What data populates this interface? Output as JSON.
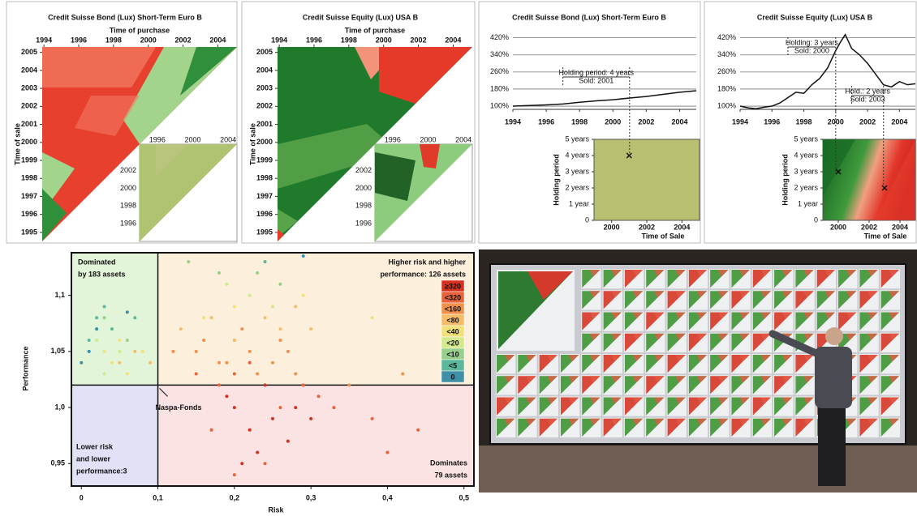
{
  "chart_data": [
    {
      "type": "heatmap",
      "title": "Credit Suisse Bond (Lux) Short-Term Euro B",
      "xlabel": "Time of purchase",
      "ylabel": "Time of sale",
      "xlim": [
        1993.9,
        2005.1
      ],
      "ylim": [
        1994.5,
        2005.3
      ],
      "xticks": [
        1994,
        1996,
        1998,
        2000,
        2002,
        2004
      ],
      "yticks": [
        1995,
        1996,
        1997,
        1998,
        1999,
        2000,
        2001,
        2002,
        2003,
        2004,
        2005
      ],
      "inset_lim": [
        1994,
        2005
      ],
      "inset_xticks": [
        1996,
        2000,
        2004
      ],
      "inset_yticks": [
        1996,
        1998,
        2000,
        2002
      ],
      "colors": [
        "#e8402e",
        "#f27a62",
        "#a3d48c",
        "#2f8f3a"
      ],
      "inset_colors": [
        "#bcc97c",
        "#a9c06e",
        "#c9c98a"
      ]
    },
    {
      "type": "heatmap",
      "title": "Credit Suisse Equity (Lux) USA B",
      "xlabel": "Time of purchase",
      "ylabel": "Time of sale",
      "xlim": [
        1993.9,
        2005.1
      ],
      "ylim": [
        1994.5,
        2005.3
      ],
      "xticks": [
        1994,
        1996,
        1998,
        2000,
        2002,
        2004
      ],
      "yticks": [
        1995,
        1996,
        1997,
        1998,
        1999,
        2000,
        2001,
        2002,
        2003,
        2004,
        2005
      ],
      "inset_lim": [
        1994,
        2005
      ],
      "inset_xticks": [
        1996,
        2000,
        2004
      ],
      "inset_yticks": [
        1996,
        1998,
        2000,
        2002
      ],
      "colors": [
        "#1f7a2c",
        "#5ea84e",
        "#e5392a",
        "#f3937a"
      ],
      "inset_colors": [
        "#8ccc7c",
        "#16561e",
        "#e03a2a"
      ]
    },
    {
      "type": "line",
      "title": "Credit Suisse Bond (Lux) Short-Term Euro B",
      "color": "#111111",
      "x": [
        1994,
        1995,
        1996,
        1997,
        1998,
        1999,
        2000,
        2001,
        2002,
        2003,
        2004,
        2005
      ],
      "values": [
        100,
        103,
        106,
        110,
        118,
        125,
        130,
        138,
        145,
        155,
        165,
        172
      ],
      "xlim": [
        1994,
        2005
      ],
      "ylim": [
        85,
        430
      ],
      "xticks": [
        1994,
        1996,
        1998,
        2000,
        2002,
        2004
      ],
      "yticks": [
        {
          "value": 100,
          "label": "100%"
        },
        {
          "value": 180,
          "label": "180%"
        },
        {
          "value": 260,
          "label": "260%"
        },
        {
          "value": 340,
          "label": "340%"
        },
        {
          "value": 420,
          "label": "420%"
        }
      ],
      "annotations": [
        {
          "text": [
            "Holding period: 4 years",
            "Sold: 2001"
          ],
          "from": 1997,
          "to": 2001
        }
      ],
      "holding": {
        "xlabel": "Time of Sale",
        "ylabel": "Holding period",
        "xlim": [
          1999,
          2005
        ],
        "ylim": [
          0,
          5
        ],
        "xticks": [
          2000,
          2002,
          2004
        ],
        "yticks": [
          0,
          {
            "value": 1,
            "label": "1 year"
          },
          {
            "value": 2,
            "label": "2 years"
          },
          {
            "value": 3,
            "label": "3 years"
          },
          {
            "value": 4,
            "label": "4 years"
          },
          {
            "value": 5,
            "label": "5 years"
          }
        ],
        "colors": [
          "#b8bf70",
          "#b8bf70"
        ],
        "x": [
          2001
        ],
        "values": [
          4
        ]
      }
    },
    {
      "type": "line",
      "title": "Credit Suisse Equity (Lux) USA B",
      "color": "#111111",
      "x": [
        1994,
        1994.5,
        1995,
        1995.5,
        1996,
        1996.5,
        1997,
        1997.5,
        1998,
        1998.5,
        1999,
        1999.5,
        2000,
        2000.3,
        2000.6,
        2001,
        2001.5,
        2002,
        2002.5,
        2003,
        2003.5,
        2004,
        2004.5,
        2005
      ],
      "values": [
        100,
        92,
        88,
        95,
        100,
        115,
        140,
        165,
        160,
        200,
        230,
        280,
        360,
        400,
        435,
        370,
        340,
        300,
        250,
        200,
        190,
        215,
        200,
        205
      ],
      "xlim": [
        1994,
        2005
      ],
      "ylim": [
        85,
        430
      ],
      "xticks": [
        1994,
        1996,
        1998,
        2000,
        2002,
        2004
      ],
      "yticks": [
        {
          "value": 100,
          "label": "100%"
        },
        {
          "value": 180,
          "label": "180%"
        },
        {
          "value": 260,
          "label": "260%"
        },
        {
          "value": 340,
          "label": "340%"
        },
        {
          "value": 420,
          "label": "420%"
        }
      ],
      "annotations": [
        {
          "text": [
            "Holding: 3 years",
            "Sold: 2000"
          ],
          "from": 1997,
          "to": 2000
        },
        {
          "text": [
            "Hold.: 2 years",
            "Sold: 2003"
          ],
          "from": 2001,
          "to": 2003
        }
      ],
      "holding": {
        "xlabel": "Time of Sale",
        "ylabel": "Holding period",
        "xlim": [
          1999,
          2005
        ],
        "ylim": [
          0,
          5
        ],
        "xticks": [
          2000,
          2002,
          2004
        ],
        "yticks": [
          0,
          {
            "value": 1,
            "label": "1 year"
          },
          {
            "value": 2,
            "label": "2 years"
          },
          {
            "value": 3,
            "label": "3 years"
          },
          {
            "value": 4,
            "label": "4 years"
          },
          {
            "value": 5,
            "label": "5 years"
          }
        ],
        "colors": [
          "#1a6e26",
          "#e8402e"
        ],
        "x": [
          2000,
          2003
        ],
        "values": [
          3,
          2
        ]
      }
    },
    {
      "type": "scatter",
      "xlabel": "Risk",
      "ylabel": "Performance",
      "xlim": [
        -0.013,
        0.513
      ],
      "ylim": [
        0.93,
        1.138
      ],
      "xticks": [
        0,
        {
          "value": 0.1,
          "label": "0,1"
        },
        {
          "value": 0.2,
          "label": "0,2"
        },
        {
          "value": 0.3,
          "label": "0,3"
        },
        {
          "value": 0.4,
          "label": "0,4"
        },
        {
          "value": 0.5,
          "label": "0,5"
        }
      ],
      "yticks": [
        {
          "value": 0.95,
          "label": "0,95"
        },
        {
          "value": 1,
          "label": "1,0"
        },
        {
          "value": 1.05,
          "label": "1,05"
        },
        {
          "value": 1.1,
          "label": "1,1"
        }
      ],
      "legend": "upper right",
      "series": [
        {
          "name": "≥320",
          "color": "#d7301f",
          "x": [
            0.2,
            0.22,
            0.25,
            0.27,
            0.19,
            0.23,
            0.28,
            0.3,
            0.21,
            0.24
          ],
          "values": [
            1.0,
            0.98,
            0.99,
            0.97,
            1.01,
            0.96,
            1.0,
            0.99,
            0.95,
            1.02
          ]
        },
        {
          "name": "<320",
          "color": "#e8623a",
          "x": [
            0.18,
            0.2,
            0.22,
            0.26,
            0.29,
            0.31,
            0.17,
            0.44,
            0.38,
            0.4,
            0.2,
            0.24,
            0.33,
            0.15
          ],
          "values": [
            1.02,
            1.03,
            1.04,
            1.0,
            1.02,
            1.01,
            0.98,
            0.98,
            0.99,
            0.96,
            0.94,
            0.95,
            1.0,
            1.03
          ]
        },
        {
          "name": "<160",
          "color": "#f0904a",
          "x": [
            0.15,
            0.18,
            0.2,
            0.22,
            0.25,
            0.27,
            0.28,
            0.21,
            0.12,
            0.35,
            0.42,
            0.16,
            0.23,
            0.26,
            0.19
          ],
          "values": [
            1.05,
            1.04,
            1.06,
            1.05,
            1.04,
            1.05,
            1.03,
            1.07,
            1.05,
            1.02,
            1.03,
            1.06,
            1.03,
            1.06,
            1.04
          ]
        },
        {
          "name": "<80",
          "color": "#f5bd6a",
          "x": [
            0.13,
            0.17,
            0.2,
            0.24,
            0.3,
            0.09,
            0.07,
            0.05,
            0.28,
            0.26
          ],
          "values": [
            1.07,
            1.08,
            1.06,
            1.08,
            1.07,
            1.04,
            1.05,
            1.04,
            1.09,
            1.07
          ]
        },
        {
          "name": "<40",
          "color": "#f2e07a",
          "x": [
            0.03,
            0.05,
            0.04,
            0.08,
            0.06,
            0.16,
            0.2,
            0.29,
            0.38
          ],
          "values": [
            1.05,
            1.06,
            1.04,
            1.05,
            1.03,
            1.08,
            1.09,
            1.1,
            1.08
          ]
        },
        {
          "name": "<20",
          "color": "#d4e88c",
          "x": [
            0.02,
            0.04,
            0.03,
            0.05,
            0.22,
            0.19,
            0.25
          ],
          "values": [
            1.06,
            1.07,
            1.03,
            1.05,
            1.1,
            1.11,
            1.09
          ]
        },
        {
          "name": "<10",
          "color": "#96d08a",
          "x": [
            0.02,
            0.03,
            0.06,
            0.01,
            0.18,
            0.23,
            0.26,
            0.14
          ],
          "values": [
            1.07,
            1.08,
            1.06,
            1.05,
            1.12,
            1.12,
            1.11,
            1.13
          ]
        },
        {
          "name": "<5",
          "color": "#5cb89c",
          "x": [
            0.01,
            0.02,
            0.03,
            0.07,
            0.04,
            0.24
          ],
          "values": [
            1.06,
            1.08,
            1.09,
            1.08,
            1.07,
            1.13
          ]
        },
        {
          "name": "0",
          "color": "#3f8fa6",
          "x": [
            0.0,
            0.01,
            0.02,
            0.06,
            0.29
          ],
          "values": [
            1.04,
            1.05,
            1.07,
            1.085,
            1.135
          ]
        }
      ],
      "quadrants": [
        {
          "text": [
            "Dominated",
            "by 183 assets"
          ],
          "color": "#e3f5d9"
        },
        {
          "text": [
            "Higher risk and higher",
            "performance: 126 assets"
          ],
          "color": "#fcefdc"
        },
        {
          "text": [
            "Lower risk",
            "and lower",
            "performance:3"
          ],
          "color": "#e2e2f7"
        },
        {
          "text": [
            "Dominates",
            "79 assets"
          ],
          "color": "#fbe3e3"
        }
      ],
      "annotation": {
        "text": "Naspa-Fonds",
        "x": 0.1,
        "y": 1.02
      }
    }
  ]
}
